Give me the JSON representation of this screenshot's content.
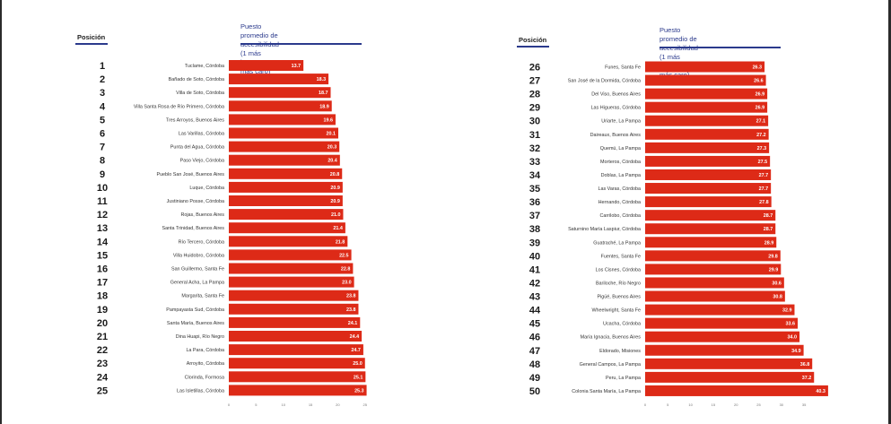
{
  "colors": {
    "bar": "#dd2a17",
    "accent": "#2b3a8c",
    "text": "#222222"
  },
  "chart_data": [
    {
      "type": "bar",
      "orientation": "horizontal",
      "rank_header": "Posición",
      "title_line1": "Puesto promedio de accesibilidad",
      "title_line2": "(1 más barato a 50 más caro)",
      "ranks": [
        1,
        2,
        3,
        4,
        5,
        6,
        7,
        8,
        9,
        10,
        11,
        12,
        13,
        14,
        15,
        16,
        17,
        18,
        19,
        20,
        21,
        22,
        23,
        24,
        25
      ],
      "categories": [
        "Tuclame, Córdoba",
        "Bañado de Soto, Córdoba",
        "Villa de Soto, Córdoba",
        "Villa Santa Rosa de Río Primero, Córdoba",
        "Tres Arroyos, Buenos Aires",
        "Las Varillas, Córdoba",
        "Punta del Agua, Córdoba",
        "Paso Viejo, Córdoba",
        "Pueblo San José, Buenos Aires",
        "Luque, Córdoba",
        "Justiniano Posse, Córdoba",
        "Rojas, Buenos Aires",
        "Santa Trinidad, Buenos Aires",
        "Río Tercero, Córdoba",
        "Villa Huidobro, Córdoba",
        "San Guillermo, Santa Fe",
        "General Acha, La Pampa",
        "Margarita, Santa Fe",
        "Pampayasta Sud, Córdoba",
        "Santa María, Buenos Aires",
        "Dina Huapi, Río Negro",
        "La Para, Córdoba",
        "Arroyito, Córdoba",
        "Clorinda, Formosa",
        "Las Isletillas, Córdoba"
      ],
      "values": [
        13.7,
        18.3,
        18.7,
        18.9,
        19.6,
        20.1,
        20.3,
        20.4,
        20.8,
        20.9,
        20.9,
        21.0,
        21.4,
        21.8,
        22.5,
        22.8,
        23.0,
        23.8,
        23.8,
        24.1,
        24.4,
        24.7,
        25.0,
        25.1,
        25.3
      ],
      "value_labels": [
        "13.7",
        "18.3",
        "18.7",
        "18.9",
        "19.6",
        "20.1",
        "20.3",
        "20.4",
        "20.8",
        "20.9",
        "20.9",
        "21.0",
        "21.4",
        "21.8",
        "22.5",
        "22.8",
        "23.0",
        "23.8",
        "23.8",
        "24.1",
        "24.4",
        "24.7",
        "25.0",
        "25.1",
        "25.3"
      ],
      "xlim": [
        0,
        25
      ],
      "xticks": [
        "0",
        "5",
        "10",
        "15",
        "20",
        "25"
      ]
    },
    {
      "type": "bar",
      "orientation": "horizontal",
      "rank_header": "Posición",
      "title_line1": "Puesto promedio de accesibilidad",
      "title_line2": "(1 más barato a 50 más caro)",
      "ranks": [
        26,
        27,
        28,
        29,
        30,
        31,
        32,
        33,
        34,
        35,
        36,
        37,
        38,
        39,
        40,
        41,
        42,
        43,
        44,
        45,
        46,
        47,
        48,
        49,
        50
      ],
      "categories": [
        "Funes, Santa Fe",
        "San José de la Dormida, Córdoba",
        "Del Viso, Buenos Aires",
        "Las Higueras, Córdoba",
        "Uriarte, La Pampa",
        "Daireaux, Buenos Aires",
        "Quemú, La Pampa",
        "Morteros, Córdoba",
        "Doblas, La Pampa",
        "Las Varas, Córdoba",
        "Hernando, Córdoba",
        "Carrilobo, Córdoba",
        "Saturnino María Laspiur, Córdoba",
        "Guatraché, La Pampa",
        "Fuentes, Santa Fe",
        "Los Cisnes, Córdoba",
        "Bariloche, Río Negro",
        "Pigüé, Buenos Aires",
        "Wheelwright, Santa Fe",
        "Ucacha, Córdoba",
        "María Ignacia, Buenos Aires",
        "Eldorado, Misiones",
        "General Campos, La Pampa",
        "Peru, La Pampa",
        "Colonia Santa María, La Pampa"
      ],
      "values": [
        26.3,
        26.6,
        26.9,
        26.9,
        27.1,
        27.2,
        27.3,
        27.5,
        27.7,
        27.7,
        27.8,
        28.7,
        28.7,
        28.9,
        29.8,
        29.9,
        30.6,
        30.8,
        32.9,
        33.6,
        34.0,
        34.9,
        36.8,
        37.2,
        40.3
      ],
      "value_labels": [
        "26.3",
        "26.6",
        "26.9",
        "26.9",
        "27.1",
        "27.2",
        "27.3",
        "27.5",
        "27.7",
        "27.7",
        "27.8",
        "28.7",
        "28.7",
        "28.9",
        "29.8",
        "29.9",
        "30.6",
        "30.8",
        "32.9",
        "33.6",
        "34.0",
        "34.9",
        "36.8",
        "37.2",
        "40.3"
      ],
      "xlim": [
        0,
        40
      ],
      "xticks": [
        "0",
        "5",
        "10",
        "15",
        "20",
        "25",
        "30",
        "35"
      ]
    }
  ]
}
